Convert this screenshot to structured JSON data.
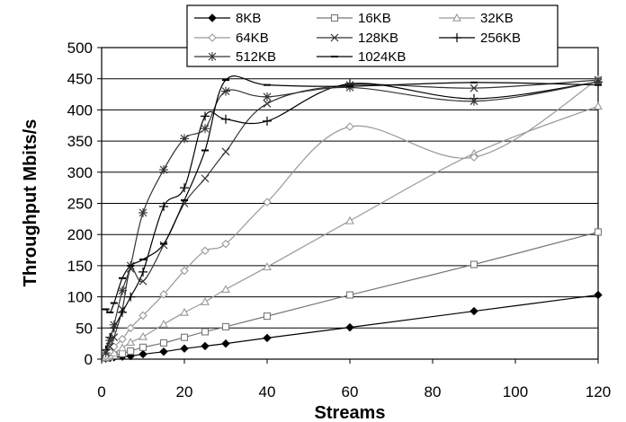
{
  "chart_data": {
    "type": "line",
    "title": "",
    "xlabel": "Streams",
    "ylabel": "Throughput Mbits/s",
    "xlim": [
      0,
      120
    ],
    "ylim": [
      0,
      500
    ],
    "x_ticks": [
      "0",
      "20",
      "40",
      "60",
      "80",
      "100",
      "120"
    ],
    "y_ticks": [
      "0",
      "50",
      "100",
      "150",
      "200",
      "250",
      "300",
      "350",
      "400",
      "450",
      "500"
    ],
    "grid": "horizontal",
    "legend_position": "top",
    "series": [
      {
        "name": "8KB",
        "marker": "diamond-filled",
        "color": "#000000",
        "x": [
          1,
          2,
          3,
          5,
          7,
          10,
          15,
          20,
          25,
          30,
          40,
          60,
          90,
          120
        ],
        "y": [
          1,
          2,
          3,
          4,
          5,
          8,
          12,
          17,
          21,
          25,
          34,
          51,
          77,
          103
        ]
      },
      {
        "name": "16KB",
        "marker": "square-open",
        "color": "#777777",
        "x": [
          1,
          2,
          3,
          5,
          7,
          10,
          15,
          20,
          25,
          30,
          40,
          60,
          90,
          120
        ],
        "y": [
          2,
          4,
          6,
          9,
          13,
          19,
          26,
          35,
          44,
          52,
          69,
          103,
          152,
          204
        ]
      },
      {
        "name": "32KB",
        "marker": "triangle-open",
        "color": "#999999",
        "x": [
          1,
          2,
          3,
          5,
          7,
          10,
          15,
          20,
          25,
          30,
          40,
          60,
          90,
          120
        ],
        "y": [
          3,
          6,
          10,
          18,
          27,
          36,
          56,
          75,
          92,
          112,
          148,
          222,
          330,
          406
        ]
      },
      {
        "name": "64KB",
        "marker": "diamond-open",
        "color": "#999999",
        "x": [
          1,
          2,
          3,
          5,
          7,
          10,
          15,
          20,
          25,
          30,
          40,
          60,
          90,
          120
        ],
        "y": [
          5,
          12,
          20,
          32,
          50,
          70,
          104,
          142,
          174,
          185,
          252,
          373,
          324,
          449
        ]
      },
      {
        "name": "128KB",
        "marker": "x",
        "color": "#333333",
        "x": [
          1,
          2,
          3,
          5,
          7,
          10,
          15,
          20,
          25,
          30,
          40,
          60,
          90,
          120
        ],
        "y": [
          10,
          20,
          35,
          80,
          145,
          125,
          183,
          250,
          290,
          333,
          410,
          440,
          435,
          448
        ]
      },
      {
        "name": "256KB",
        "marker": "plus",
        "color": "#000000",
        "x": [
          1,
          2,
          3,
          5,
          7,
          10,
          15,
          20,
          25,
          30,
          40,
          60,
          90,
          120
        ],
        "y": [
          15,
          35,
          50,
          75,
          100,
          140,
          245,
          275,
          390,
          385,
          382,
          442,
          418,
          445
        ]
      },
      {
        "name": "512KB",
        "marker": "asterisk",
        "color": "#333333",
        "x": [
          1,
          2,
          3,
          5,
          7,
          10,
          15,
          20,
          25,
          30,
          40,
          60,
          90,
          120
        ],
        "y": [
          10,
          30,
          55,
          110,
          150,
          235,
          304,
          354,
          370,
          430,
          421,
          436,
          414,
          445
        ]
      },
      {
        "name": "1024KB",
        "marker": "dash",
        "color": "#000000",
        "x": [
          1,
          2,
          3,
          5,
          7,
          10,
          15,
          20,
          25,
          30,
          40,
          60,
          90,
          120
        ],
        "y": [
          80,
          75,
          90,
          130,
          150,
          160,
          185,
          255,
          335,
          448,
          440,
          438,
          444,
          440
        ]
      }
    ]
  }
}
